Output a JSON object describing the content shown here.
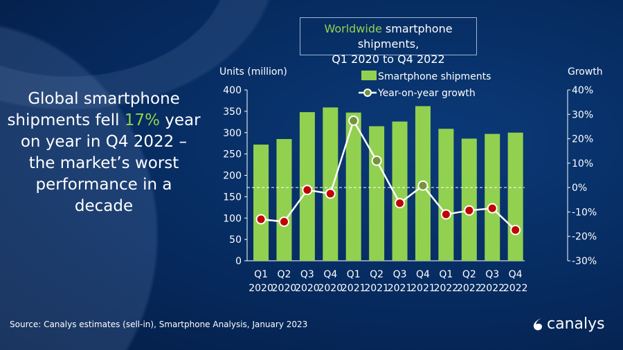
{
  "headline": {
    "part1": "Global smartphone shipments fell ",
    "highlight": "17%",
    "part2": " year on year in Q4 2022 – the market’s worst performance in a decade"
  },
  "title": {
    "highlight": "Worldwide",
    "rest": " smartphone shipments,",
    "line2": "Q1 2020 to Q4 2022"
  },
  "source": "Source: Canalys estimates (sell-in), Smartphone Analysis, January 2023",
  "logo": "canalys",
  "colors": {
    "bar": "#92d050",
    "positive_marker": "#77933c",
    "negative_marker": "#c00000",
    "line": "#ffffff",
    "background": "#062a5e"
  },
  "chart_data": {
    "type": "bar+line",
    "categories": [
      "Q1 2020",
      "Q2 2020",
      "Q3 2020",
      "Q4 2020",
      "Q1 2021",
      "Q2 2021",
      "Q3 2021",
      "Q4 2021",
      "Q1 2022",
      "Q2 2022",
      "Q3 2022",
      "Q4 2022"
    ],
    "category_lines": [
      [
        "Q1",
        "2020"
      ],
      [
        "Q2",
        "2020"
      ],
      [
        "Q3",
        "2020"
      ],
      [
        "Q4",
        "2020"
      ],
      [
        "Q1",
        "2021"
      ],
      [
        "Q2",
        "2021"
      ],
      [
        "Q3",
        "2021"
      ],
      [
        "Q4",
        "2021"
      ],
      [
        "Q1",
        "2022"
      ],
      [
        "Q2",
        "2022"
      ],
      [
        "Q3",
        "2022"
      ],
      [
        "Q4",
        "2022"
      ]
    ],
    "series": [
      {
        "name": "Smartphone shipments",
        "type": "bar",
        "axis": "left",
        "values": [
          272,
          285,
          348,
          359,
          347,
          315,
          326,
          362,
          309,
          286,
          297,
          300
        ]
      },
      {
        "name": "Year-on-year growth",
        "type": "line",
        "axis": "right",
        "values": [
          -13,
          -14,
          -1,
          -2.5,
          27.4,
          11,
          -6.4,
          0.8,
          -11,
          -9.4,
          -8.5,
          -17.4
        ]
      }
    ],
    "ylabel": "Units (million)",
    "ylim": [
      0,
      400
    ],
    "yticks": [
      "0",
      "50",
      "100",
      "150",
      "200",
      "250",
      "300",
      "350",
      "400"
    ],
    "y2label": "Growth",
    "y2lim": [
      -30,
      40
    ],
    "y2ticks": [
      "-30%",
      "-20%",
      "-10%",
      "0%",
      "10%",
      "20%",
      "30%",
      "40%"
    ],
    "zero_line": "dashed",
    "legend": "top-center"
  }
}
